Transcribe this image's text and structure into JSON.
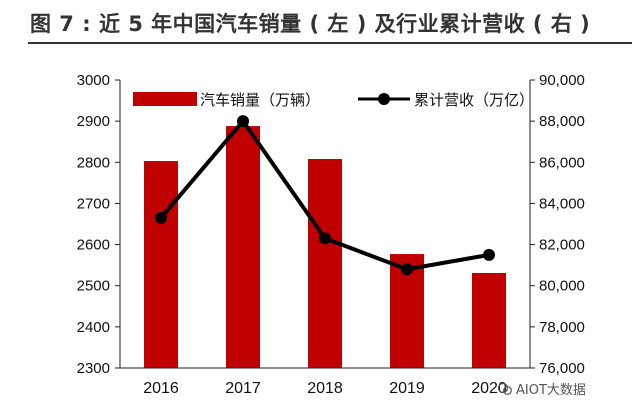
{
  "figure": {
    "title": "图 7 : 近 5 年中国汽车销量 ( 左 ) 及行业累计营收 ( 右 )"
  },
  "watermark": {
    "text": "AIOT大数据"
  },
  "chart_data": {
    "type": "bar+line",
    "categories": [
      "2016",
      "2017",
      "2018",
      "2019",
      "2020"
    ],
    "series": [
      {
        "name": "汽车销量（万辆）",
        "type": "bar",
        "axis": "left",
        "color": "#c00000",
        "values": [
          2803,
          2888,
          2808,
          2577,
          2531
        ]
      },
      {
        "name": "累计营收（万亿）",
        "type": "line",
        "axis": "right",
        "color": "#000000",
        "values": [
          83300,
          88000,
          82300,
          80800,
          81500
        ]
      }
    ],
    "left_axis": {
      "ylim": [
        2300,
        3000
      ],
      "ticks": [
        "2300",
        "2400",
        "2500",
        "2600",
        "2700",
        "2800",
        "2900",
        "3000"
      ]
    },
    "right_axis": {
      "ylim": [
        76000,
        90000
      ],
      "ticks": [
        "76,000",
        "78,000",
        "80,000",
        "82,000",
        "84,000",
        "86,000",
        "88,000",
        "90,000"
      ]
    },
    "legend": "top-center",
    "grid": false
  }
}
